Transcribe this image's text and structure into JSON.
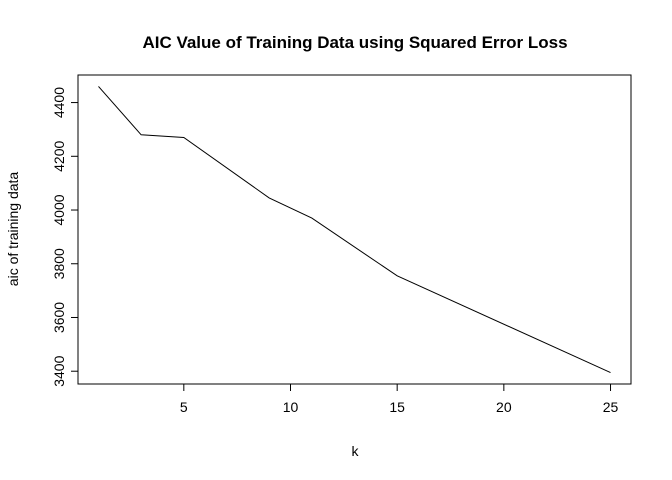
{
  "chart_data": {
    "type": "line",
    "title": "AIC Value of Training Data using Squared Error Loss",
    "xlabel": "k",
    "ylabel": "aic of training data",
    "x": [
      1,
      3,
      5,
      9,
      11,
      15,
      25
    ],
    "series": [
      {
        "values": [
          4460,
          4280,
          4270,
          4045,
          3970,
          3755,
          3395
        ]
      }
    ],
    "x_ticks": [
      5,
      10,
      15,
      20,
      25
    ],
    "x_tick_labels": [
      "5",
      "10",
      "15",
      "20",
      "25"
    ],
    "y_ticks": [
      3400,
      3600,
      3800,
      4000,
      4200,
      4400
    ],
    "y_tick_labels": [
      "3400",
      "3600",
      "3800",
      "4000",
      "4200",
      "4400"
    ],
    "xlim": [
      0.04,
      25.96
    ],
    "ylim": [
      3352.4,
      4502.6
    ],
    "grid": false,
    "line_color": "#000000"
  }
}
